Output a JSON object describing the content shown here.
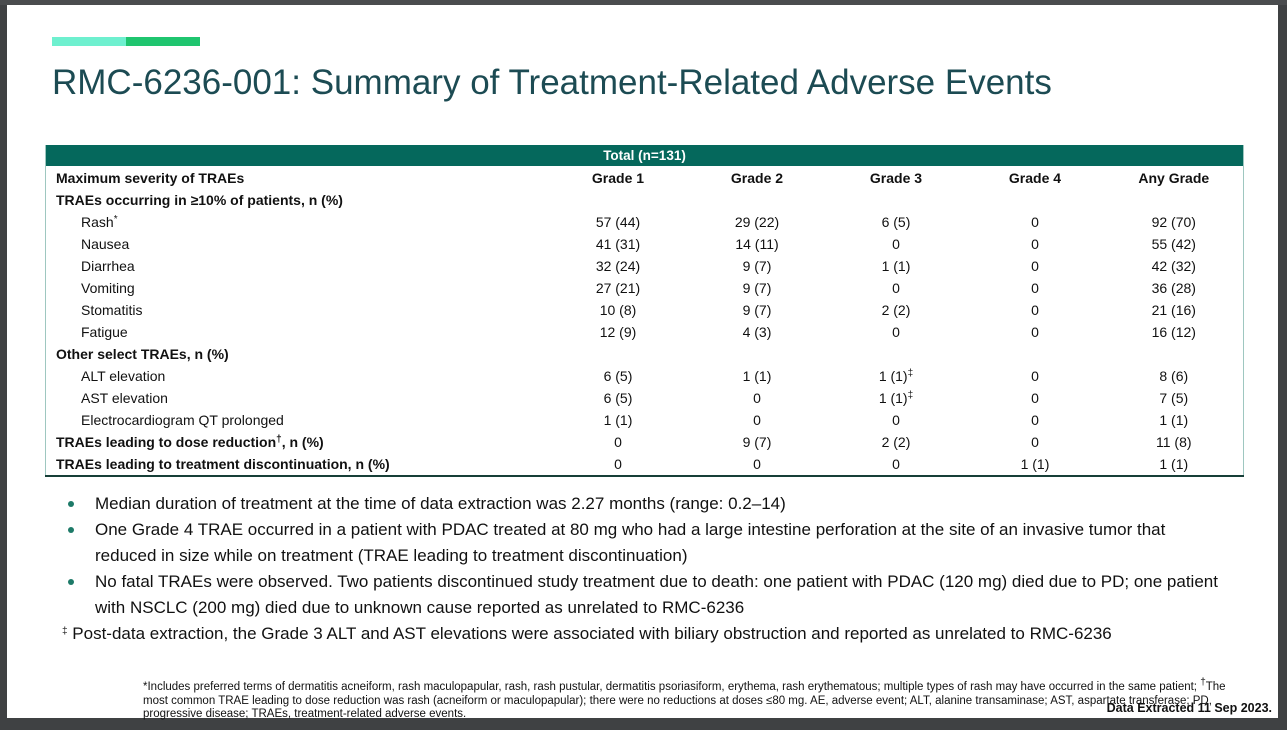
{
  "title": "RMC-6236-001: Summary of Treatment-Related Adverse Events",
  "colors": {
    "accent_mint": "#6ef0cf",
    "accent_green": "#1fc56f",
    "table_header_teal": "#05685c",
    "title_teal": "#1c4b53",
    "bullet_dot": "#1d7a68",
    "table_side_border": "#9ec7c0",
    "window_frame": "#3f4143"
  },
  "table": {
    "banner": "Total (n=131)",
    "corner_header": "Maximum severity of TRAEs",
    "grade_columns": [
      "Grade 1",
      "Grade 2",
      "Grade 3",
      "Grade 4",
      "Any Grade"
    ],
    "rows": [
      {
        "type": "section",
        "pre": "TRAEs occurring in ≥10% of patients, n (%)",
        "sup": "",
        "post": "",
        "values": [
          {
            "v": "",
            "s": ""
          },
          {
            "v": "",
            "s": ""
          },
          {
            "v": "",
            "s": ""
          },
          {
            "v": "",
            "s": ""
          },
          {
            "v": "",
            "s": ""
          }
        ]
      },
      {
        "type": "item",
        "pre": "Rash",
        "sup": "*",
        "post": "",
        "values": [
          {
            "v": "57 (44)",
            "s": ""
          },
          {
            "v": "29 (22)",
            "s": ""
          },
          {
            "v": "6 (5)",
            "s": ""
          },
          {
            "v": "0",
            "s": ""
          },
          {
            "v": "92 (70)",
            "s": ""
          }
        ]
      },
      {
        "type": "item",
        "pre": "Nausea",
        "sup": "",
        "post": "",
        "values": [
          {
            "v": "41 (31)",
            "s": ""
          },
          {
            "v": "14 (11)",
            "s": ""
          },
          {
            "v": "0",
            "s": ""
          },
          {
            "v": "0",
            "s": ""
          },
          {
            "v": "55 (42)",
            "s": ""
          }
        ]
      },
      {
        "type": "item",
        "pre": "Diarrhea",
        "sup": "",
        "post": "",
        "values": [
          {
            "v": "32 (24)",
            "s": ""
          },
          {
            "v": "9 (7)",
            "s": ""
          },
          {
            "v": "1 (1)",
            "s": ""
          },
          {
            "v": "0",
            "s": ""
          },
          {
            "v": "42 (32)",
            "s": ""
          }
        ]
      },
      {
        "type": "item",
        "pre": "Vomiting",
        "sup": "",
        "post": "",
        "values": [
          {
            "v": "27 (21)",
            "s": ""
          },
          {
            "v": "9 (7)",
            "s": ""
          },
          {
            "v": "0",
            "s": ""
          },
          {
            "v": "0",
            "s": ""
          },
          {
            "v": "36 (28)",
            "s": ""
          }
        ]
      },
      {
        "type": "item",
        "pre": "Stomatitis",
        "sup": "",
        "post": "",
        "values": [
          {
            "v": "10 (8)",
            "s": ""
          },
          {
            "v": "9 (7)",
            "s": ""
          },
          {
            "v": "2 (2)",
            "s": ""
          },
          {
            "v": "0",
            "s": ""
          },
          {
            "v": "21 (16)",
            "s": ""
          }
        ]
      },
      {
        "type": "item",
        "pre": "Fatigue",
        "sup": "",
        "post": "",
        "values": [
          {
            "v": "12 (9)",
            "s": ""
          },
          {
            "v": "4 (3)",
            "s": ""
          },
          {
            "v": "0",
            "s": ""
          },
          {
            "v": "0",
            "s": ""
          },
          {
            "v": "16 (12)",
            "s": ""
          }
        ]
      },
      {
        "type": "section",
        "pre": "Other select TRAEs, n (%)",
        "sup": "",
        "post": "",
        "values": [
          {
            "v": "",
            "s": ""
          },
          {
            "v": "",
            "s": ""
          },
          {
            "v": "",
            "s": ""
          },
          {
            "v": "",
            "s": ""
          },
          {
            "v": "",
            "s": ""
          }
        ]
      },
      {
        "type": "item",
        "pre": "ALT elevation",
        "sup": "",
        "post": "",
        "values": [
          {
            "v": "6 (5)",
            "s": ""
          },
          {
            "v": "1 (1)",
            "s": ""
          },
          {
            "v": "1 (1)",
            "s": "‡"
          },
          {
            "v": "0",
            "s": ""
          },
          {
            "v": "8 (6)",
            "s": ""
          }
        ]
      },
      {
        "type": "item",
        "pre": "AST elevation",
        "sup": "",
        "post": "",
        "values": [
          {
            "v": "6 (5)",
            "s": ""
          },
          {
            "v": "0",
            "s": ""
          },
          {
            "v": "1 (1)",
            "s": "‡"
          },
          {
            "v": "0",
            "s": ""
          },
          {
            "v": "7 (5)",
            "s": ""
          }
        ]
      },
      {
        "type": "item",
        "pre": "Electrocardiogram QT prolonged",
        "sup": "",
        "post": "",
        "values": [
          {
            "v": "1 (1)",
            "s": ""
          },
          {
            "v": "0",
            "s": ""
          },
          {
            "v": "0",
            "s": ""
          },
          {
            "v": "0",
            "s": ""
          },
          {
            "v": "1 (1)",
            "s": ""
          }
        ]
      },
      {
        "type": "section",
        "pre": "TRAEs leading to dose reduction",
        "sup": "†",
        "post": ", n (%)",
        "values": [
          {
            "v": "0",
            "s": ""
          },
          {
            "v": "9 (7)",
            "s": ""
          },
          {
            "v": "2 (2)",
            "s": ""
          },
          {
            "v": "0",
            "s": ""
          },
          {
            "v": "11 (8)",
            "s": ""
          }
        ]
      },
      {
        "type": "section",
        "pre": "TRAEs leading to treatment discontinuation, n (%)",
        "sup": "",
        "post": "",
        "values": [
          {
            "v": "0",
            "s": ""
          },
          {
            "v": "0",
            "s": ""
          },
          {
            "v": "0",
            "s": ""
          },
          {
            "v": "1 (1)",
            "s": ""
          },
          {
            "v": "1 (1)",
            "s": ""
          }
        ]
      }
    ]
  },
  "bullets": [
    "Median duration of treatment at the time of data extraction was 2.27 months (range: 0.2–14)",
    "One Grade 4 TRAE occurred in a patient with PDAC treated at 80 mg who had a large intestine perforation at the site of an invasive tumor that reduced in size while on treatment (TRAE leading to treatment discontinuation)",
    "No fatal TRAEs were observed. Two patients discontinued study treatment due to death: one patient with PDAC (120 mg) died due to PD; one patient with NSCLC (200 mg) died due to unknown cause reported as unrelated to RMC-6236"
  ],
  "dagger_note": {
    "sup": "‡",
    "text": " Post-data extraction, the Grade 3 ALT and AST elevations were associated with biliary obstruction and reported as unrelated to RMC-6236"
  },
  "footnote": {
    "part1": "*Includes preferred terms of dermatitis acneiform, rash maculopapular, rash, rash pustular, dermatitis psoriasiform, erythema, rash erythematous; multiple types of rash may have occurred in the same patient; ",
    "dagger": "†",
    "part2": "The most common TRAE leading to dose reduction was rash (acneiform or maculopapular); there were no reductions at doses ≤80 mg. AE, adverse event; ALT, alanine transaminase; AST, aspartate transferase; PD, progressive disease; TRAEs, treatment-related adverse events."
  },
  "data_extracted": "Data Extracted 11 Sep 2023."
}
